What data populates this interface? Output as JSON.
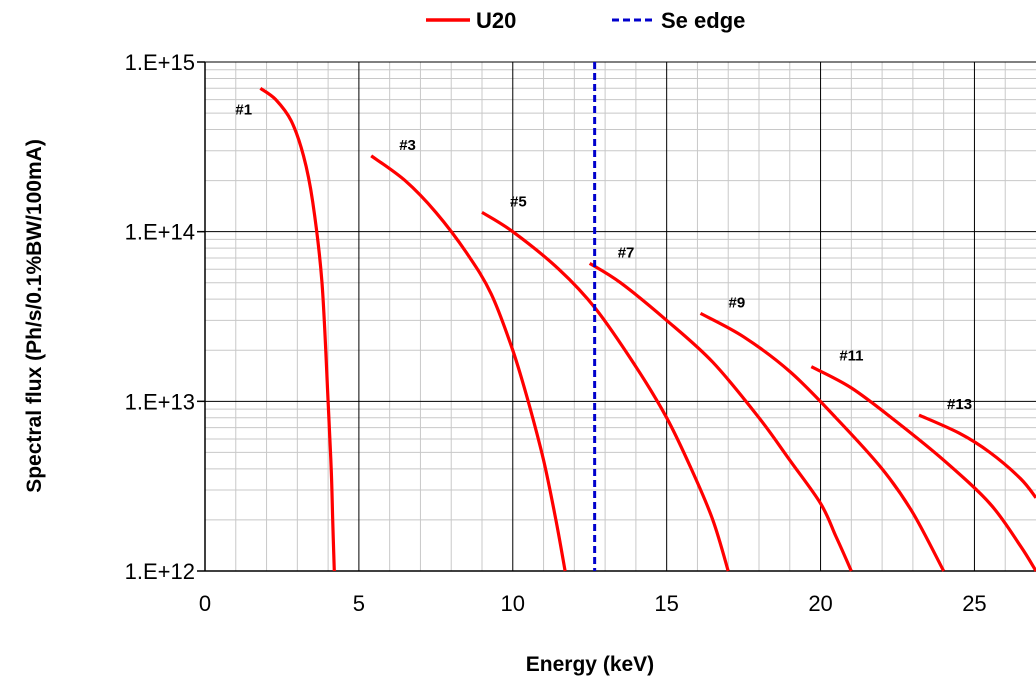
{
  "chart_data": {
    "type": "line",
    "xlabel": "Energy (keV)",
    "ylabel": "Spectral flux (Ph/s/0.1%BW/100mA)",
    "xlim": [
      0,
      27
    ],
    "ylim": [
      1000000000000.0,
      1000000000000000.0
    ],
    "yscale": "log",
    "x_ticks": [
      "0",
      "5",
      "10",
      "15",
      "20",
      "25"
    ],
    "y_ticks": [
      "1.E+12",
      "1.E+13",
      "1.E+14",
      "1.E+15"
    ],
    "grid": true,
    "legend": {
      "position": "top",
      "entries": [
        {
          "name": "U20",
          "color": "#ff0000",
          "style": "solid"
        },
        {
          "name": "Se edge",
          "color": "#0000cc",
          "style": "dashed"
        }
      ]
    },
    "series": [
      {
        "group": "U20",
        "label": "#1",
        "x": [
          1.8,
          2.3,
          2.8,
          3.2,
          3.5,
          3.8,
          4.0,
          4.1,
          4.15,
          4.2
        ],
        "y": [
          700000000000000.0,
          600000000000000.0,
          450000000000000.0,
          280000000000000.0,
          150000000000000.0,
          50000000000000.0,
          10000000000000.0,
          4000000000000.0,
          2000000000000.0,
          1000000000000.0
        ]
      },
      {
        "group": "U20",
        "label": "#3",
        "x": [
          5.4,
          6.5,
          7.5,
          8.5,
          9.3,
          10.0,
          10.5,
          11.0,
          11.4,
          11.7
        ],
        "y": [
          280000000000000.0,
          200000000000000.0,
          130000000000000.0,
          75000000000000.0,
          43000000000000.0,
          20000000000000.0,
          10000000000000.0,
          4500000000000.0,
          2000000000000.0,
          1000000000000.0
        ]
      },
      {
        "group": "U20",
        "label": "#5",
        "x": [
          9.0,
          10.0,
          11.5,
          12.7,
          14.0,
          15.0,
          15.8,
          16.5,
          17.0
        ],
        "y": [
          130000000000000.0,
          100000000000000.0,
          60000000000000.0,
          35000000000000.0,
          16000000000000.0,
          8000000000000.0,
          4000000000000.0,
          2000000000000.0,
          1000000000000.0
        ]
      },
      {
        "group": "U20",
        "label": "#7",
        "x": [
          12.5,
          13.5,
          15.0,
          16.5,
          18.0,
          19.0,
          20.0,
          20.5,
          21.0
        ],
        "y": [
          65000000000000.0,
          50000000000000.0,
          30000000000000.0,
          17000000000000.0,
          8000000000000.0,
          4500000000000.0,
          2500000000000.0,
          1600000000000.0,
          1000000000000.0
        ]
      },
      {
        "group": "U20",
        "label": "#9",
        "x": [
          16.1,
          17.5,
          19.0,
          20.5,
          22.0,
          23.0,
          24.0
        ],
        "y": [
          33000000000000.0,
          24000000000000.0,
          15000000000000.0,
          8000000000000.0,
          4000000000000.0,
          2200000000000.0,
          1000000000000.0
        ]
      },
      {
        "group": "U20",
        "label": "#11",
        "x": [
          19.7,
          21.0,
          22.5,
          24.0,
          25.5,
          26.5,
          27.0
        ],
        "y": [
          16000000000000.0,
          12000000000000.0,
          7500000000000.0,
          4500000000000.0,
          2500000000000.0,
          1400000000000.0,
          1000000000000.0
        ]
      },
      {
        "group": "U20",
        "label": "#13",
        "x": [
          23.2,
          24.5,
          25.5,
          26.5,
          27.0
        ],
        "y": [
          8300000000000.0,
          6500000000000.0,
          5000000000000.0,
          3500000000000.0,
          2700000000000.0
        ]
      }
    ],
    "vline": {
      "name": "Se edge",
      "x": 12.66
    }
  }
}
